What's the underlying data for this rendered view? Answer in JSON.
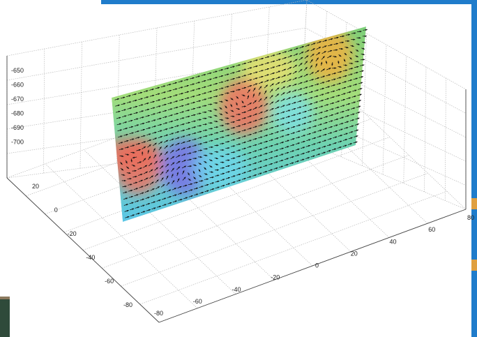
{
  "chart_data": {
    "type": "quiver3d",
    "title": "",
    "xlabel": "",
    "ylabel": "",
    "zlabel": "",
    "grid": true,
    "colormap": "jet",
    "zlim": [
      -700,
      -650
    ],
    "z_ticks": [
      "-650",
      "-660",
      "-670",
      "-680",
      "-690",
      "-700"
    ],
    "y_ticks": [
      "20",
      "0",
      "-20",
      "-40",
      "-60",
      "-80"
    ],
    "x_ticks": [
      "-80",
      "-60",
      "-40",
      "-20",
      "0",
      "20",
      "40",
      "60",
      "80"
    ],
    "vector_field": {
      "plane": "vertical slice",
      "rows": 20,
      "columns": 44,
      "dominant_direction": "right",
      "eddies": [
        {
          "u": 0.52,
          "v": 0.38,
          "rotation": "counter-clockwise",
          "color": "red"
        },
        {
          "u": 0.27,
          "v": 0.72,
          "rotation": "clockwise",
          "color": "blue"
        },
        {
          "u": 0.86,
          "v": 0.15,
          "rotation": "clockwise",
          "color": "orange"
        },
        {
          "u": 0.08,
          "v": 0.6,
          "rotation": "counter-clockwise",
          "color": "red"
        }
      ]
    },
    "colors": {
      "background": "#ffffff",
      "grid": "#b9b9b9",
      "arrows": "#111111",
      "accent_border": "#1f7ccb"
    }
  }
}
